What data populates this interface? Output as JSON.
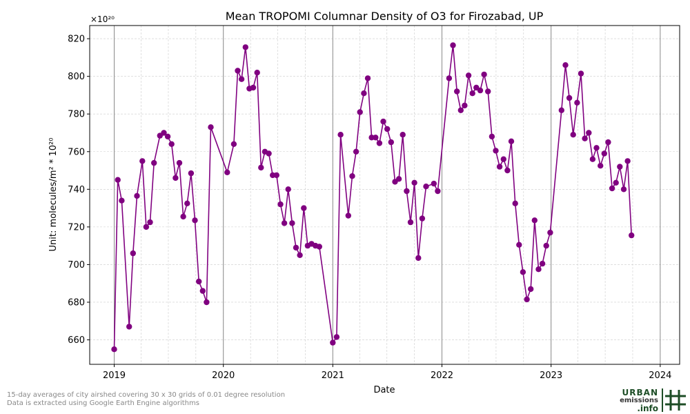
{
  "chart_data": {
    "type": "line",
    "title": "Mean TROPOMI Columnar Density of O3 for Firozabad, UP",
    "xlabel": "Date",
    "ylabel": "Unit: molecules/m² * 10²⁰",
    "scale_label": "×10²⁰",
    "xlim": [
      "2018-10-11",
      "2024-03-06"
    ],
    "ylim": [
      647,
      827
    ],
    "x_ticks": [
      "2019",
      "2020",
      "2021",
      "2022",
      "2023",
      "2024"
    ],
    "y_ticks": [
      "660",
      "680",
      "700",
      "720",
      "740",
      "760",
      "780",
      "800",
      "820"
    ],
    "grid": true,
    "vertical_year_lines": true,
    "marker": "circle",
    "series": [
      {
        "color": "#800080",
        "points": [
          {
            "x": "2019-01-01",
            "y": 655
          },
          {
            "x": "2019-01-13",
            "y": 745
          },
          {
            "x": "2019-01-26",
            "y": 734
          },
          {
            "x": "2019-02-20",
            "y": 667
          },
          {
            "x": "2019-03-05",
            "y": 706
          },
          {
            "x": "2019-03-18",
            "y": 736.5
          },
          {
            "x": "2019-04-05",
            "y": 755
          },
          {
            "x": "2019-04-18",
            "y": 720
          },
          {
            "x": "2019-05-01",
            "y": 722.5
          },
          {
            "x": "2019-05-14",
            "y": 754
          },
          {
            "x": "2019-06-03",
            "y": 768.5
          },
          {
            "x": "2019-06-16",
            "y": 770
          },
          {
            "x": "2019-06-29",
            "y": 768
          },
          {
            "x": "2019-07-12",
            "y": 764
          },
          {
            "x": "2019-07-25",
            "y": 746
          },
          {
            "x": "2019-08-07",
            "y": 754
          },
          {
            "x": "2019-08-20",
            "y": 725.5
          },
          {
            "x": "2019-09-02",
            "y": 732.5
          },
          {
            "x": "2019-09-15",
            "y": 748.5
          },
          {
            "x": "2019-09-28",
            "y": 723.5
          },
          {
            "x": "2019-10-11",
            "y": 691
          },
          {
            "x": "2019-10-24",
            "y": 686
          },
          {
            "x": "2019-11-06",
            "y": 680
          },
          {
            "x": "2019-11-20",
            "y": 773
          },
          {
            "x": "2020-01-14",
            "y": 749
          },
          {
            "x": "2020-02-05",
            "y": 764
          },
          {
            "x": "2020-02-18",
            "y": 803
          },
          {
            "x": "2020-03-02",
            "y": 798.5
          },
          {
            "x": "2020-03-15",
            "y": 815.5
          },
          {
            "x": "2020-03-28",
            "y": 793.5
          },
          {
            "x": "2020-04-10",
            "y": 794
          },
          {
            "x": "2020-04-23",
            "y": 802
          },
          {
            "x": "2020-05-06",
            "y": 751.5
          },
          {
            "x": "2020-05-19",
            "y": 760
          },
          {
            "x": "2020-06-01",
            "y": 759
          },
          {
            "x": "2020-06-14",
            "y": 747.5
          },
          {
            "x": "2020-06-27",
            "y": 747.5
          },
          {
            "x": "2020-07-10",
            "y": 732
          },
          {
            "x": "2020-07-23",
            "y": 722
          },
          {
            "x": "2020-08-05",
            "y": 740
          },
          {
            "x": "2020-08-18",
            "y": 722
          },
          {
            "x": "2020-08-31",
            "y": 709
          },
          {
            "x": "2020-09-13",
            "y": 705
          },
          {
            "x": "2020-09-26",
            "y": 730
          },
          {
            "x": "2020-10-09",
            "y": 710
          },
          {
            "x": "2020-10-22",
            "y": 711
          },
          {
            "x": "2020-11-04",
            "y": 710
          },
          {
            "x": "2020-11-17",
            "y": 709.5
          },
          {
            "x": "2021-01-01",
            "y": 658.5
          },
          {
            "x": "2021-01-14",
            "y": 661.5
          },
          {
            "x": "2021-01-27",
            "y": 769
          },
          {
            "x": "2021-02-22",
            "y": 726
          },
          {
            "x": "2021-03-07",
            "y": 747
          },
          {
            "x": "2021-03-20",
            "y": 760
          },
          {
            "x": "2021-04-02",
            "y": 781
          },
          {
            "x": "2021-04-15",
            "y": 791
          },
          {
            "x": "2021-04-28",
            "y": 799
          },
          {
            "x": "2021-05-11",
            "y": 767.5
          },
          {
            "x": "2021-05-24",
            "y": 767.5
          },
          {
            "x": "2021-06-06",
            "y": 764.5
          },
          {
            "x": "2021-06-19",
            "y": 776
          },
          {
            "x": "2021-07-02",
            "y": 772
          },
          {
            "x": "2021-07-15",
            "y": 765
          },
          {
            "x": "2021-07-28",
            "y": 744
          },
          {
            "x": "2021-08-10",
            "y": 745.5
          },
          {
            "x": "2021-08-23",
            "y": 769
          },
          {
            "x": "2021-09-05",
            "y": 739
          },
          {
            "x": "2021-09-18",
            "y": 722.5
          },
          {
            "x": "2021-10-01",
            "y": 743.5
          },
          {
            "x": "2021-10-14",
            "y": 703.5
          },
          {
            "x": "2021-10-27",
            "y": 724.5
          },
          {
            "x": "2021-11-09",
            "y": 741.5
          },
          {
            "x": "2021-12-05",
            "y": 743
          },
          {
            "x": "2021-12-18",
            "y": 739
          },
          {
            "x": "2022-01-25",
            "y": 799
          },
          {
            "x": "2022-02-07",
            "y": 816.5
          },
          {
            "x": "2022-02-20",
            "y": 792
          },
          {
            "x": "2022-03-05",
            "y": 782
          },
          {
            "x": "2022-03-18",
            "y": 784.5
          },
          {
            "x": "2022-03-31",
            "y": 800.5
          },
          {
            "x": "2022-04-13",
            "y": 791
          },
          {
            "x": "2022-04-26",
            "y": 794
          },
          {
            "x": "2022-05-09",
            "y": 792.5
          },
          {
            "x": "2022-05-22",
            "y": 801
          },
          {
            "x": "2022-06-04",
            "y": 792
          },
          {
            "x": "2022-06-17",
            "y": 768
          },
          {
            "x": "2022-06-30",
            "y": 760.5
          },
          {
            "x": "2022-07-13",
            "y": 752
          },
          {
            "x": "2022-07-26",
            "y": 756
          },
          {
            "x": "2022-08-08",
            "y": 750
          },
          {
            "x": "2022-08-21",
            "y": 765.5
          },
          {
            "x": "2022-09-03",
            "y": 732.5
          },
          {
            "x": "2022-09-16",
            "y": 710.5
          },
          {
            "x": "2022-09-29",
            "y": 696
          },
          {
            "x": "2022-10-12",
            "y": 681.5
          },
          {
            "x": "2022-10-25",
            "y": 687
          },
          {
            "x": "2022-11-07",
            "y": 723.5
          },
          {
            "x": "2022-11-20",
            "y": 697.5
          },
          {
            "x": "2022-12-03",
            "y": 700.5
          },
          {
            "x": "2022-12-16",
            "y": 710
          },
          {
            "x": "2022-12-29",
            "y": 717
          },
          {
            "x": "2023-02-05",
            "y": 782
          },
          {
            "x": "2023-02-18",
            "y": 806
          },
          {
            "x": "2023-03-03",
            "y": 788.5
          },
          {
            "x": "2023-03-16",
            "y": 769
          },
          {
            "x": "2023-03-29",
            "y": 786
          },
          {
            "x": "2023-04-11",
            "y": 801.5
          },
          {
            "x": "2023-04-24",
            "y": 767
          },
          {
            "x": "2023-05-07",
            "y": 770
          },
          {
            "x": "2023-05-20",
            "y": 756
          },
          {
            "x": "2023-06-02",
            "y": 762
          },
          {
            "x": "2023-06-15",
            "y": 752.5
          },
          {
            "x": "2023-06-28",
            "y": 759
          },
          {
            "x": "2023-07-11",
            "y": 765
          },
          {
            "x": "2023-07-24",
            "y": 740.5
          },
          {
            "x": "2023-08-06",
            "y": 743.5
          },
          {
            "x": "2023-08-19",
            "y": 752
          },
          {
            "x": "2023-09-01",
            "y": 740
          },
          {
            "x": "2023-09-14",
            "y": 755
          },
          {
            "x": "2023-09-27",
            "y": 715.5
          }
        ]
      }
    ]
  },
  "footnotes": {
    "line1": "15-day averages of city airshed covering 30 x 30 grids of 0.01 degree resolution",
    "line2": "Data is extracted using Google Earth Engine algorithms"
  },
  "logo": {
    "line1": "URBAN",
    "line2": "emissions",
    "line3": ".info"
  }
}
